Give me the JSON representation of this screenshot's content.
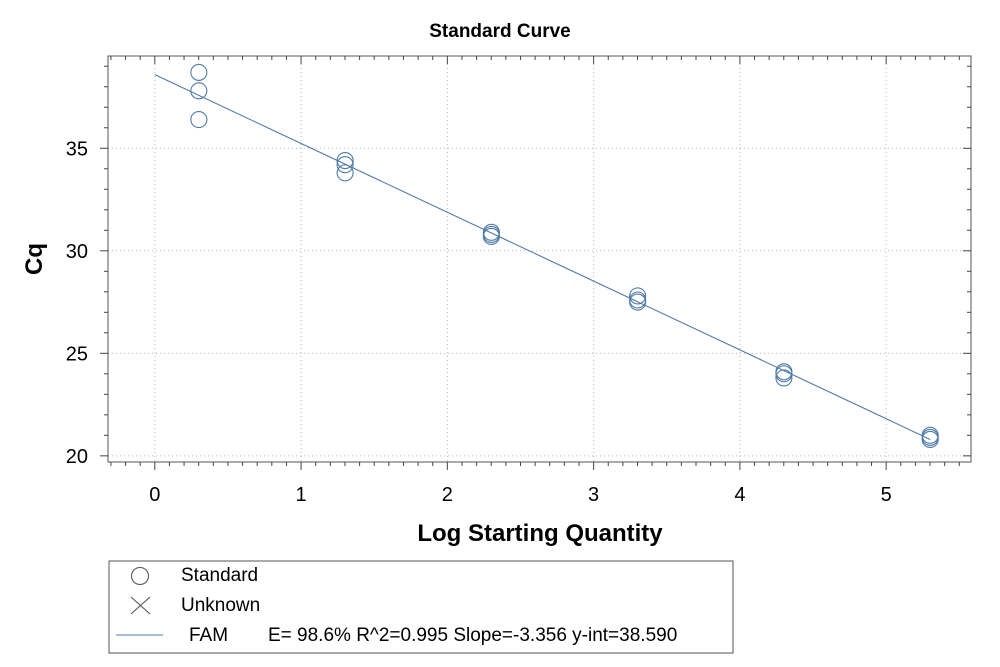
{
  "chart_data": {
    "type": "scatter",
    "title": "Standard Curve",
    "xlabel": "Log Starting Quantity",
    "ylabel": "Cq",
    "xlim": [
      -0.32,
      5.58
    ],
    "ylim": [
      19.7,
      39.5
    ],
    "xticks": [
      "0",
      "1",
      "2",
      "3",
      "4",
      "5"
    ],
    "yticks": [
      "20",
      "25",
      "30",
      "35"
    ],
    "grid": true,
    "series": [
      {
        "name": "Standard",
        "marker": "circle",
        "points": [
          {
            "x": 0.301,
            "y": 38.7
          },
          {
            "x": 0.301,
            "y": 37.8
          },
          {
            "x": 0.301,
            "y": 36.4
          },
          {
            "x": 1.301,
            "y": 34.4
          },
          {
            "x": 1.301,
            "y": 34.2
          },
          {
            "x": 1.301,
            "y": 33.8
          },
          {
            "x": 2.301,
            "y": 30.9
          },
          {
            "x": 2.301,
            "y": 30.8
          },
          {
            "x": 2.301,
            "y": 30.7
          },
          {
            "x": 3.301,
            "y": 27.8
          },
          {
            "x": 3.301,
            "y": 27.6
          },
          {
            "x": 3.301,
            "y": 27.5
          },
          {
            "x": 4.301,
            "y": 24.1
          },
          {
            "x": 4.301,
            "y": 24.0
          },
          {
            "x": 4.301,
            "y": 23.8
          },
          {
            "x": 5.301,
            "y": 21.0
          },
          {
            "x": 5.301,
            "y": 20.9
          },
          {
            "x": 5.301,
            "y": 20.8
          }
        ]
      },
      {
        "name": "Unknown",
        "marker": "x",
        "points": []
      }
    ],
    "fit": {
      "name": "FAM",
      "slope": -3.356,
      "intercept": 38.59,
      "x_range": [
        0.0,
        5.301
      ],
      "stats_text": "E= 98.6% R^2=0.995 Slope=-3.356 y-int=38.590"
    },
    "legend": {
      "placement": "bottom-left",
      "entries": [
        {
          "label": "Standard",
          "symbol": "circle"
        },
        {
          "label": "Unknown",
          "symbol": "x"
        },
        {
          "label": "FAM",
          "symbol": "line",
          "detail": "E= 98.6% R^2=0.995 Slope=-3.356 y-int=38.590"
        }
      ]
    },
    "colors": {
      "series": "#4f7aa6",
      "frame": "#555555"
    }
  }
}
